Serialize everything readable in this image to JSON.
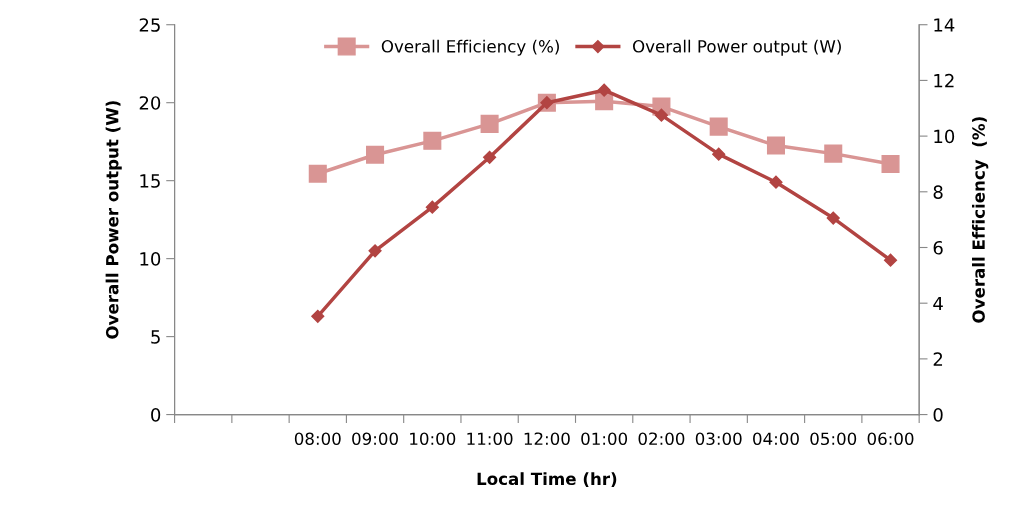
{
  "chart_data": {
    "type": "line",
    "xlabel": "Local Time (hr)",
    "ylabel": "Overall Power output (W)",
    "y2label": "Overall Efficiency  (%)",
    "categories": [
      null,
      null,
      "08:00",
      "09:00",
      "10:00",
      "11:00",
      "12:00",
      "01:00",
      "02:00",
      "03:00",
      "04:00",
      "05:00",
      "06:00"
    ],
    "series": [
      {
        "name": "Overall Efficiency (%)",
        "color": "#d99594",
        "marker": "square",
        "axis": "y2",
        "values": [
          null,
          null,
          8.65,
          9.33,
          9.83,
          10.44,
          11.2,
          11.25,
          11.06,
          10.34,
          9.66,
          9.37,
          9.0
        ]
      },
      {
        "name": "Overall Power output (W)",
        "color": "#b24442",
        "marker": "diamond",
        "values": [
          null,
          null,
          6.3,
          10.5,
          13.3,
          16.5,
          20.0,
          20.8,
          19.2,
          16.7,
          14.9,
          12.6,
          9.9
        ]
      }
    ],
    "ylim": [
      0,
      25
    ],
    "yticks": [
      0,
      5,
      10,
      15,
      20,
      25
    ],
    "y2lim": [
      0,
      14
    ],
    "y2ticks": [
      0,
      2,
      4,
      6,
      8,
      10,
      12,
      14
    ],
    "legend": "top",
    "grid": false
  }
}
